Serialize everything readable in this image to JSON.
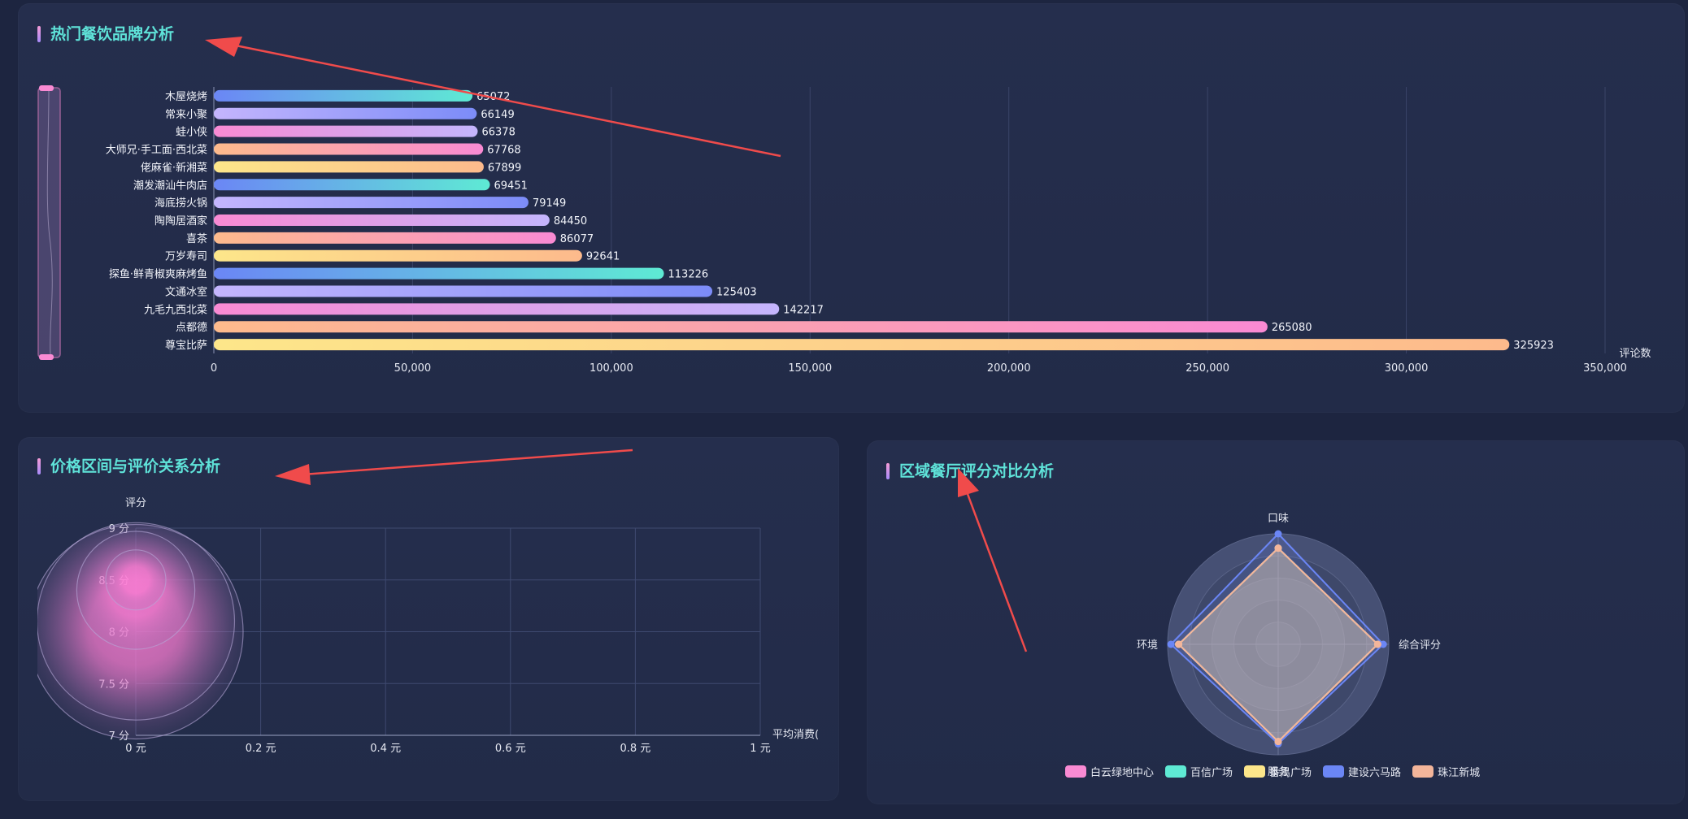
{
  "panels": {
    "brand": {
      "title": "热门餐饮品牌分析"
    },
    "price": {
      "title": "价格区间与评价关系分析"
    },
    "region": {
      "title": "区域餐厅评分对比分析"
    }
  },
  "colors": {
    "title": "#5fe3d9",
    "bar_gradients": [
      [
        "#fde68a",
        "#fdba8c"
      ],
      [
        "#fdba8c",
        "#f98ad3"
      ],
      [
        "#f98ad3",
        "#c4b5fd"
      ],
      [
        "#c4b5fd",
        "#7c8cf8"
      ],
      [
        "#6b86f5",
        "#5eead4"
      ]
    ],
    "radar": "#f3b59a",
    "bubble": "#ff7fd6"
  },
  "chart_data": [
    {
      "type": "bar",
      "orientation": "horizontal",
      "title": "热门餐饮品牌分析",
      "xlabel": "评论数",
      "xlim": [
        0,
        350000
      ],
      "xticks": [
        0,
        50000,
        100000,
        150000,
        200000,
        250000,
        300000,
        350000
      ],
      "xtick_labels": [
        "0",
        "50,000",
        "100,000",
        "150,000",
        "200,000",
        "250,000",
        "300,000",
        "350,000"
      ],
      "categories": [
        "木屋烧烤",
        "常来小聚",
        "蛙小侠",
        "大师兄·手工面·西北菜",
        "佬麻雀·新湘菜",
        "潮发潮汕牛肉店",
        "海底捞火锅",
        "陶陶居酒家",
        "喜茶",
        "万岁寿司",
        "探鱼·鲜青椒爽麻烤鱼",
        "文通冰室",
        "九毛九西北菜",
        "点都德",
        "尊宝比萨"
      ],
      "values": [
        65072,
        66149,
        66378,
        67768,
        67899,
        69451,
        79149,
        84450,
        86077,
        92641,
        113226,
        125403,
        142217,
        265080,
        325923
      ],
      "value_labels": [
        "65072",
        "66149",
        "66378",
        "67768",
        "67899",
        "69451",
        "79149",
        "84450",
        "86077",
        "92641",
        "113226",
        "125403",
        "142217",
        "265080",
        "325923"
      ]
    },
    {
      "type": "scatter",
      "title": "价格区间与评价关系分析",
      "xlabel": "平均消费(",
      "ylabel": "评分",
      "xlim": [
        0,
        1
      ],
      "ylim": [
        7,
        9
      ],
      "xticks": [
        0,
        0.2,
        0.4,
        0.6,
        0.8,
        1
      ],
      "xtick_labels": [
        "0 元",
        "0.2 元",
        "0.4 元",
        "0.6 元",
        "0.8 元",
        "1 元"
      ],
      "yticks": [
        7,
        7.5,
        8,
        8.5,
        9
      ],
      "ytick_labels": [
        "7 分",
        "7.5 分",
        "8 分",
        "8.5 分",
        "9 分"
      ],
      "points": [
        {
          "x": 0,
          "y": 8.0,
          "size": 1.0
        },
        {
          "x": 0,
          "y": 8.1,
          "size": 0.92
        },
        {
          "x": 0,
          "y": 8.4,
          "size": 0.55
        },
        {
          "x": 0,
          "y": 8.5,
          "size": 0.28
        }
      ]
    },
    {
      "type": "radar",
      "title": "区域餐厅评分对比分析",
      "indicators": [
        "口味",
        "综合评分",
        "服务",
        "环境"
      ],
      "max": 1,
      "series": [
        {
          "name": "白云绿地中心",
          "color": "#f98ad3",
          "values": [
            0.87,
            0.9,
            0.88,
            0.9
          ]
        },
        {
          "name": "百信广场",
          "color": "#5eead4",
          "values": [
            0.87,
            0.9,
            0.88,
            0.9
          ]
        },
        {
          "name": "番禺广场",
          "color": "#fde68a",
          "values": [
            0.87,
            0.9,
            0.88,
            0.9
          ]
        },
        {
          "name": "建设六马路",
          "color": "#6b86f5",
          "values": [
            1.0,
            0.95,
            0.9,
            0.97
          ]
        },
        {
          "name": "珠江新城",
          "color": "#f3b59a",
          "values": [
            0.87,
            0.9,
            0.88,
            0.9
          ]
        }
      ]
    }
  ]
}
